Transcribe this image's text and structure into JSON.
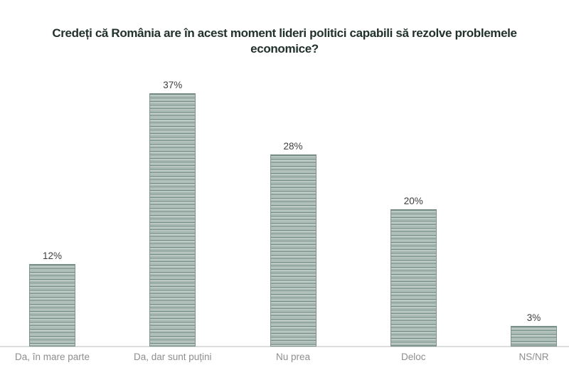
{
  "chart_data": {
    "type": "bar",
    "title": "Credeți că România are în acest moment lideri politici capabili să rezolve problemele economice?",
    "categories": [
      "Da, în mare parte",
      "Da, dar sunt puțini",
      "Nu prea",
      "Deloc",
      "NS/NR"
    ],
    "values": [
      12,
      37,
      28,
      20,
      3
    ],
    "value_labels": [
      "12%",
      "37%",
      "28%",
      "20%",
      "3%"
    ],
    "unit": "%",
    "ylim": [
      0,
      40
    ],
    "grid": false,
    "legend_position": "none",
    "colors": {
      "title": "#22312c",
      "bar_stripe_dark": "#778d87",
      "bar_stripe_mid": "#a6b7b1",
      "bar_stripe_light": "#ccd6d2",
      "bar_border": "#7e938d",
      "value_label": "#3d3d3d",
      "category_label": "#8e8e8e",
      "baseline": "#dcdedd",
      "background": "#ffffff"
    }
  }
}
